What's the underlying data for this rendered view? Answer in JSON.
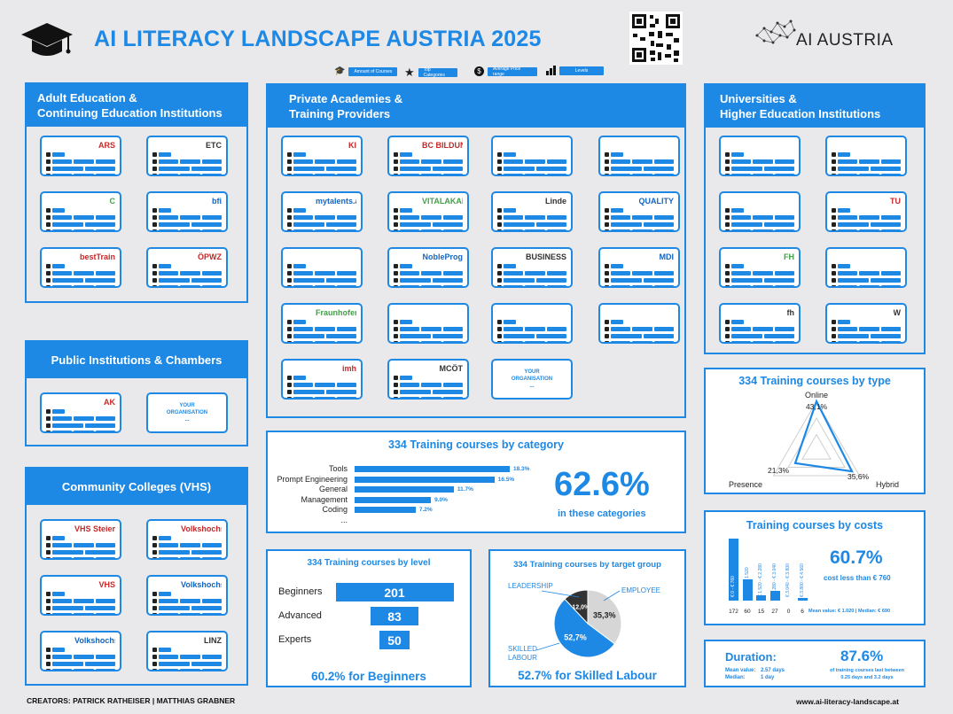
{
  "header": {
    "title": "AI LITERACY LANDSCAPE AUSTRIA 2025",
    "brand": "AI AUSTRIA",
    "legend": [
      {
        "icon": "graduation-cap-icon",
        "label": "Amount of Courses"
      },
      {
        "icon": "star-icon",
        "label": "Top Categories"
      },
      {
        "icon": "dollar-icon",
        "label": "Average Price range"
      },
      {
        "icon": "bars-icon",
        "label": "Levels"
      }
    ]
  },
  "sections": {
    "adult": {
      "title_line1": "Adult Education &",
      "title_line2": "Continuing Education Institutions"
    },
    "private": {
      "title_line1": "Private Academies &",
      "title_line2": "Training Providers"
    },
    "universities": {
      "title_line1": "Universities &",
      "title_line2": "Higher Education Institutions"
    },
    "public": {
      "title": "Public Institutions & Chambers"
    },
    "vhs": {
      "title": "Community Colleges (VHS)"
    }
  },
  "providers": {
    "adult": [
      "ARS",
      "ETC",
      "C",
      "bfi",
      "bestTrain",
      "ÖPWZ"
    ],
    "private": [
      "KI",
      "BC BILDUNGS CONSULTING",
      "",
      "",
      "mytalents.ai",
      "VITALAKADEMIE",
      "Linde",
      "QUALITY",
      "",
      "NobleProg",
      "BUSINESS SOFTWARE",
      "MDI",
      "Fraunhofer",
      "",
      "",
      "",
      "imh",
      "MCÖT"
    ],
    "universities": [
      "",
      "",
      "",
      "TU",
      "FH",
      "",
      "fh",
      "W"
    ],
    "public": [
      "AK"
    ],
    "vhs": [
      "VHS Steiermark",
      "Volkshochschule",
      "VHS",
      "Volkshochschule",
      "Volkshochschule",
      "LINZ"
    ]
  },
  "placeholder": {
    "line1": "YOUR",
    "line2": "ORGANISATION",
    "line3": "..."
  },
  "chart_data": [
    {
      "type": "bar",
      "title": "334 Training courses by category",
      "categories": [
        "Tools",
        "Prompt Engineering",
        "General",
        "Management",
        "Coding",
        "..."
      ],
      "values": [
        18.3,
        16.5,
        11.7,
        9.0,
        7.2,
        null
      ],
      "value_labels": [
        "18.3%",
        "16.5%",
        "11.7%",
        "9.0%",
        "7.2%",
        ""
      ],
      "highlight_value": "62.6%",
      "highlight_caption": "in these categories"
    },
    {
      "type": "bar",
      "title": "334 Training courses by level",
      "categories": [
        "Beginners",
        "Advanced",
        "Experts"
      ],
      "values": [
        201,
        83,
        50
      ],
      "caption": "60.2% for Beginners"
    },
    {
      "type": "pie",
      "title": "334 Training courses by target group",
      "categories": [
        "LEADERSHIP",
        "EMPLOYEE",
        "SKILLED LABOUR"
      ],
      "values": [
        12.0,
        35.3,
        52.7
      ],
      "value_labels": [
        "12,0%",
        "35,3%",
        "52,7%"
      ],
      "caption": "52.7% for Skilled Labour"
    },
    {
      "type": "radar",
      "title": "334 Training courses by type",
      "categories": [
        "Online",
        "Hybrid",
        "Presence"
      ],
      "values": [
        43.1,
        35.6,
        21.3
      ],
      "value_labels": [
        "43,1%",
        "35,6%",
        "21,3%"
      ]
    },
    {
      "type": "bar",
      "title": "Training courses by costs",
      "categories": [
        "€ 0 - € 760",
        "€ 760 - € 1.520",
        "€ 1.520 - € 2.280",
        "€ 2.280 - € 3.040",
        "€ 3.040 - € 3.800",
        "€ 3.800 - € 4.560"
      ],
      "values": [
        172,
        60,
        15,
        27,
        0,
        6
      ],
      "highlight_value": "60.7%",
      "highlight_caption": "cost less than € 760",
      "summary": "Mean value: € 1.020 | Median: € 690"
    }
  ],
  "duration": {
    "title": "Duration:",
    "mean_label": "Mean value:",
    "mean_value": "2.57 days",
    "median_label": "Median:",
    "median_value": "1 day",
    "highlight_value": "87.6%",
    "highlight_caption_1": "of training courses last between",
    "highlight_caption_2": "0.25 days and 3.2 days"
  },
  "footer": {
    "creators": "CREATORS: PATRICK RATHEISER | MATTHIAS GRABNER",
    "url": "www.ai-literacy-landscape.at"
  },
  "colors": {
    "accent": "#1e88e5",
    "background": "#e9e9eb"
  }
}
